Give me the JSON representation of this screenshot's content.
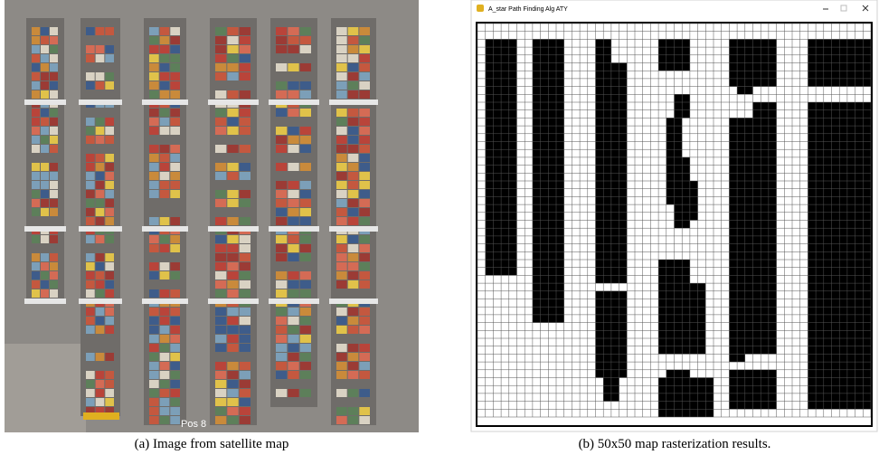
{
  "figure": {
    "panels": [
      {
        "image_label": "Pos 8",
        "caption": "(a) Image from satellite map"
      },
      {
        "window_title": "A_star Path Finding Alg ATY",
        "caption": "(b) 50x50 map rasterization results."
      }
    ]
  }
}
